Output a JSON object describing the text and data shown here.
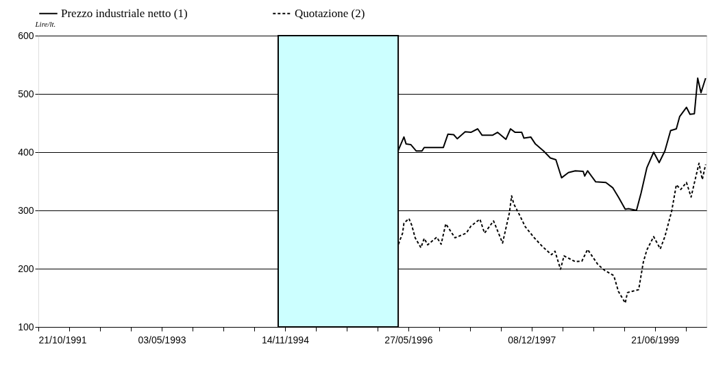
{
  "chart_data": {
    "type": "line",
    "ylabel": "Lire/lt.",
    "legend": "top",
    "grid": "y",
    "marker": "none",
    "xlim": [
      "1991-10-21",
      "2000-02-10"
    ],
    "ylim": [
      100,
      600
    ],
    "yticks": [
      100,
      200,
      300,
      400,
      500,
      600
    ],
    "xticks": [
      {
        "value": "1991-10-21",
        "label": "21/10/1991"
      },
      {
        "value": "1992-03-09",
        "label": null
      },
      {
        "value": "1992-07-27",
        "label": null
      },
      {
        "value": "1992-12-14",
        "label": null
      },
      {
        "value": "1993-05-03",
        "label": "03/05/1993"
      },
      {
        "value": "1993-09-20",
        "label": null
      },
      {
        "value": "1994-02-07",
        "label": null
      },
      {
        "value": "1994-06-27",
        "label": null
      },
      {
        "value": "1994-11-14",
        "label": "14/11/1994"
      },
      {
        "value": "1995-04-03",
        "label": null
      },
      {
        "value": "1995-08-21",
        "label": null
      },
      {
        "value": "1996-01-08",
        "label": null
      },
      {
        "value": "1996-05-27",
        "label": "27/05/1996"
      },
      {
        "value": "1996-10-14",
        "label": null
      },
      {
        "value": "1997-03-03",
        "label": null
      },
      {
        "value": "1997-07-21",
        "label": null
      },
      {
        "value": "1997-12-08",
        "label": "08/12/1997"
      },
      {
        "value": "1998-04-27",
        "label": null
      },
      {
        "value": "1998-09-14",
        "label": null
      },
      {
        "value": "1999-02-01",
        "label": null
      },
      {
        "value": "1999-06-21",
        "label": "21/06/1999"
      },
      {
        "value": "1999-11-08",
        "label": null
      }
    ],
    "bands": [
      {
        "axis": "x",
        "from": "1994-10-14",
        "to": "1996-04-11",
        "color": "#ccffff"
      }
    ],
    "series": [
      {
        "name": "Prezzo industriale netto (1)",
        "color": "#000000",
        "line_style": "solid",
        "x": [
          "1996-04-10",
          "1996-05-07",
          "1996-05-17",
          "1996-06-07",
          "1996-07-02",
          "1996-07-28",
          "1996-08-07",
          "1996-11-02",
          "1996-11-23",
          "1996-12-19",
          "1997-01-04",
          "1997-02-09",
          "1997-03-07",
          "1997-04-07",
          "1997-04-27",
          "1997-06-13",
          "1997-07-06",
          "1997-08-13",
          "1997-09-03",
          "1997-09-24",
          "1997-10-24",
          "1997-11-03",
          "1997-12-04",
          "1997-12-25",
          "1998-01-31",
          "1998-03-03",
          "1998-03-28",
          "1998-04-23",
          "1998-05-24",
          "1998-06-24",
          "1998-07-30",
          "1998-08-06",
          "1998-08-19",
          "1998-09-25",
          "1998-11-10",
          "1998-12-11",
          "1999-01-06",
          "1999-02-06",
          "1999-02-21",
          "1999-03-29",
          "1999-04-19",
          "1999-05-15",
          "1999-06-15",
          "1999-07-10",
          "1999-08-05",
          "1999-08-31",
          "1999-09-26",
          "1999-10-11",
          "1999-11-11",
          "1999-11-27",
          "1999-12-17",
          "2000-01-01",
          "2000-01-16",
          "2000-02-06"
        ],
        "values": [
          402,
          426,
          414,
          413,
          402,
          402,
          408,
          408,
          431,
          430,
          423,
          435,
          434,
          440,
          429,
          429,
          434,
          422,
          440,
          434,
          434,
          424,
          426,
          414,
          402,
          390,
          387,
          356,
          365,
          368,
          367,
          359,
          368,
          349,
          348,
          339,
          323,
          302,
          303,
          300,
          330,
          373,
          400,
          382,
          402,
          437,
          440,
          461,
          477,
          465,
          466,
          527,
          502,
          527
        ]
      },
      {
        "name": "Quotazione (2)",
        "color": "#000000",
        "line_style": "dashed",
        "x": [
          "1996-04-12",
          "1996-05-01",
          "1996-05-07",
          "1996-05-30",
          "1996-06-12",
          "1996-06-27",
          "1996-07-23",
          "1996-08-07",
          "1996-08-23",
          "1996-10-03",
          "1996-10-23",
          "1996-11-13",
          "1996-12-25",
          "1997-02-14",
          "1997-03-07",
          "1997-04-17",
          "1997-05-08",
          "1997-06-18",
          "1997-07-29",
          "1997-08-29",
          "1997-09-08",
          "1997-09-18",
          "1997-10-09",
          "1997-11-09",
          "1997-12-20",
          "1998-01-26",
          "1998-03-08",
          "1998-03-24",
          "1998-04-18",
          "1998-05-04",
          "1998-06-24",
          "1998-07-24",
          "1998-08-19",
          "1998-10-05",
          "1998-11-05",
          "1998-12-16",
          "1999-01-06",
          "1999-02-06",
          "1999-02-16",
          "1999-04-08",
          "1999-04-29",
          "1999-05-15",
          "1999-06-15",
          "1999-07-15",
          "1999-08-05",
          "1999-09-05",
          "1999-09-26",
          "1999-10-16",
          "1999-11-11",
          "1999-12-02",
          "1999-12-28",
          "2000-01-07",
          "2000-01-22",
          "2000-02-06"
        ],
        "values": [
          242,
          261,
          278,
          286,
          274,
          253,
          236,
          252,
          241,
          254,
          242,
          277,
          253,
          261,
          273,
          285,
          261,
          282,
          244,
          296,
          325,
          311,
          296,
          272,
          253,
          238,
          224,
          230,
          199,
          222,
          212,
          213,
          233,
          207,
          197,
          188,
          161,
          141,
          159,
          164,
          211,
          232,
          255,
          234,
          255,
          299,
          344,
          336,
          348,
          323,
          365,
          381,
          353,
          379
        ]
      }
    ]
  }
}
